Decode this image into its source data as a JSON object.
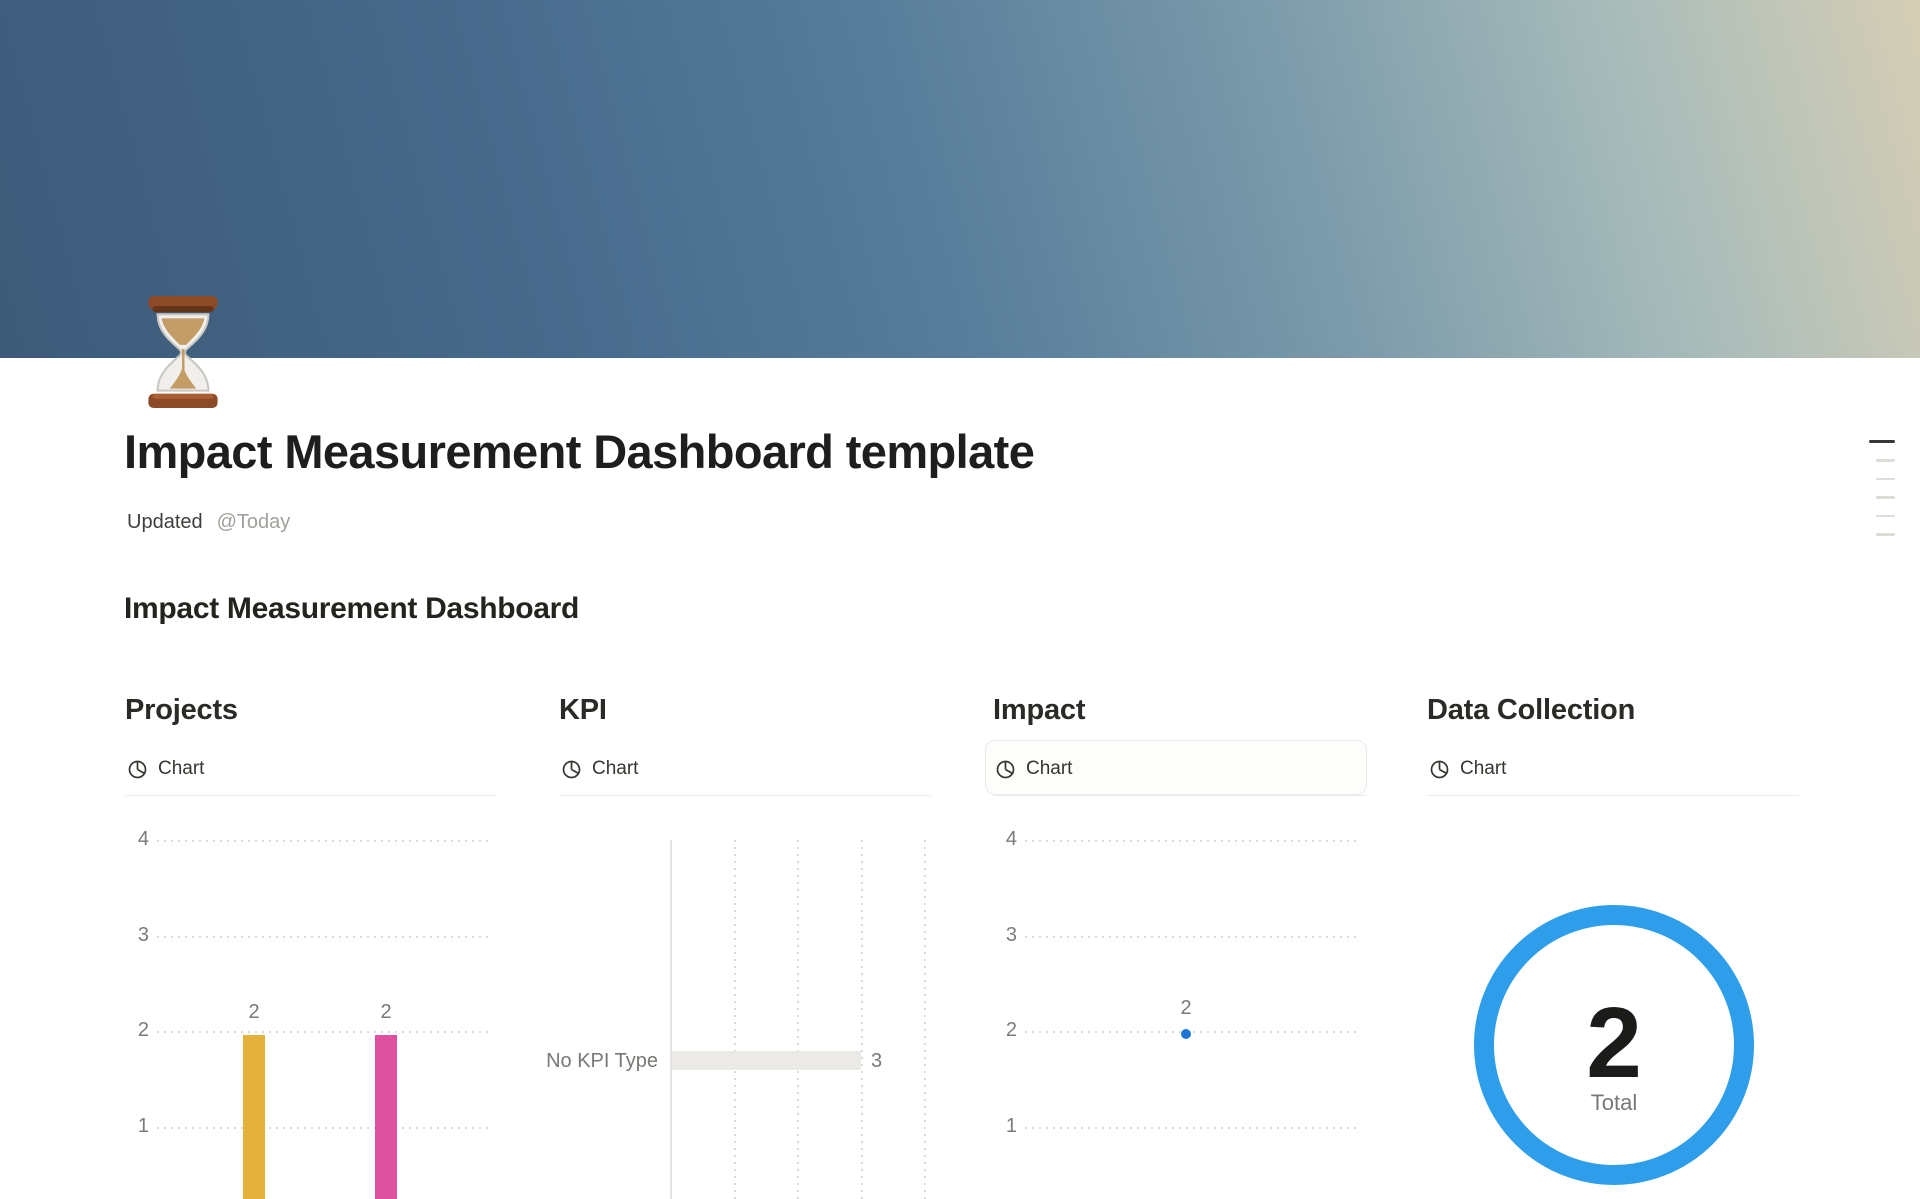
{
  "page": {
    "icon": "hourglass",
    "title": "Impact Measurement Dashboard template",
    "updated_label": "Updated",
    "updated_value": "@Today",
    "section_heading": "Impact Measurement Dashboard"
  },
  "toc": {
    "line_count": 6
  },
  "columns": [
    {
      "heading": "Projects",
      "tab_label": "Chart",
      "chart": {
        "type": "bar",
        "y_ticks": [
          4,
          3,
          2,
          1
        ],
        "ylim": [
          0,
          4
        ],
        "bars": [
          {
            "label": "2",
            "value": 2,
            "color": "#e5b13b"
          },
          {
            "label": "2",
            "value": 2,
            "color": "#de519e"
          }
        ]
      }
    },
    {
      "heading": "KPI",
      "tab_label": "Chart",
      "chart": {
        "type": "horizontal-bar",
        "x_gridlines": [
          1,
          2,
          3,
          4
        ],
        "xlim": [
          0,
          4
        ],
        "rows": [
          {
            "label": "No KPI Type",
            "value": 3,
            "value_label": "3",
            "color": "#ebeae7"
          }
        ]
      }
    },
    {
      "heading": "Impact",
      "tab_label": "Chart",
      "chart": {
        "type": "scatter",
        "y_ticks": [
          4,
          3,
          2,
          1
        ],
        "ylim": [
          0,
          4
        ],
        "points": [
          {
            "label": "2",
            "value": 2,
            "color": "#2076d6"
          }
        ]
      }
    },
    {
      "heading": "Data Collection",
      "tab_label": "Chart",
      "chart": {
        "type": "donut",
        "total_value": "2",
        "total_label": "Total",
        "color": "#2e9dea"
      }
    }
  ]
}
